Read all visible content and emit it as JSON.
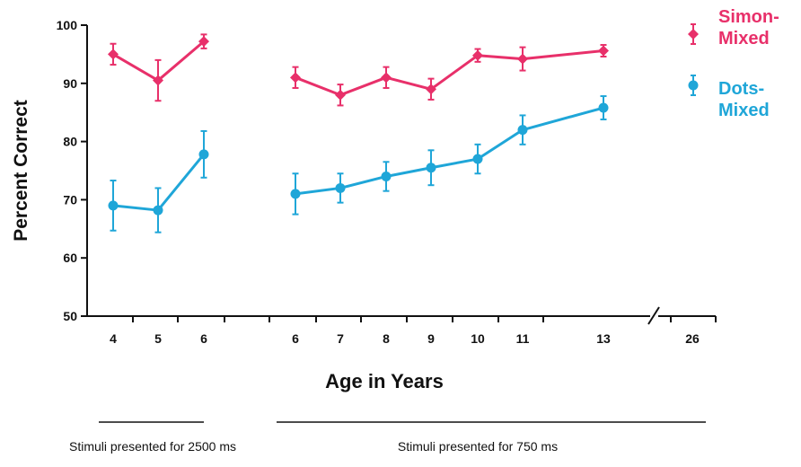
{
  "chart_data": {
    "type": "line",
    "title": "",
    "xlabel": "Age in Years",
    "ylabel": "Percent Correct",
    "ylim": [
      50,
      100
    ],
    "yticks": [
      50,
      60,
      70,
      80,
      90,
      100
    ],
    "categories": [
      "4",
      "5",
      "6",
      "6",
      "7",
      "8",
      "9",
      "10",
      "11",
      "13",
      "26"
    ],
    "series": [
      {
        "name": "Simon-Mixed",
        "legend_lines": [
          "Simon-",
          "Mixed"
        ],
        "color": "#e8306a",
        "marker": "diamond",
        "segments": [
          {
            "x_index": [
              0,
              1,
              2
            ],
            "values": [
              95,
              90.5,
              97.2
            ],
            "err": [
              1.8,
              3.5,
              1.2
            ]
          },
          {
            "x_index": [
              3,
              4,
              5,
              6,
              7,
              8,
              9
            ],
            "values": [
              91,
              88,
              91,
              89,
              94.8,
              94.2,
              95.6
            ],
            "err": [
              1.8,
              1.8,
              1.8,
              1.8,
              1.1,
              2.0,
              1.0
            ]
          }
        ]
      },
      {
        "name": "Dots-Mixed",
        "legend_lines": [
          "Dots-",
          "Mixed"
        ],
        "color": "#1fa6d8",
        "marker": "circle",
        "segments": [
          {
            "x_index": [
              0,
              1,
              2
            ],
            "values": [
              69,
              68.2,
              77.8
            ],
            "err": [
              4.3,
              3.8,
              4.0
            ]
          },
          {
            "x_index": [
              3,
              4,
              5,
              6,
              7,
              8,
              9
            ],
            "values": [
              71,
              72,
              74,
              75.5,
              77,
              82,
              85.8
            ],
            "err": [
              3.5,
              2.5,
              2.5,
              3.0,
              2.5,
              2.5,
              2.0
            ]
          }
        ]
      }
    ],
    "axis_break_between": [
      "13",
      "26"
    ],
    "annotations": [
      {
        "text": "Stimuli presented for 2500 ms",
        "spans": [
          "4",
          "6"
        ]
      },
      {
        "text": "Stimuli presented for 750 ms",
        "spans": [
          "6",
          "26"
        ]
      }
    ]
  }
}
